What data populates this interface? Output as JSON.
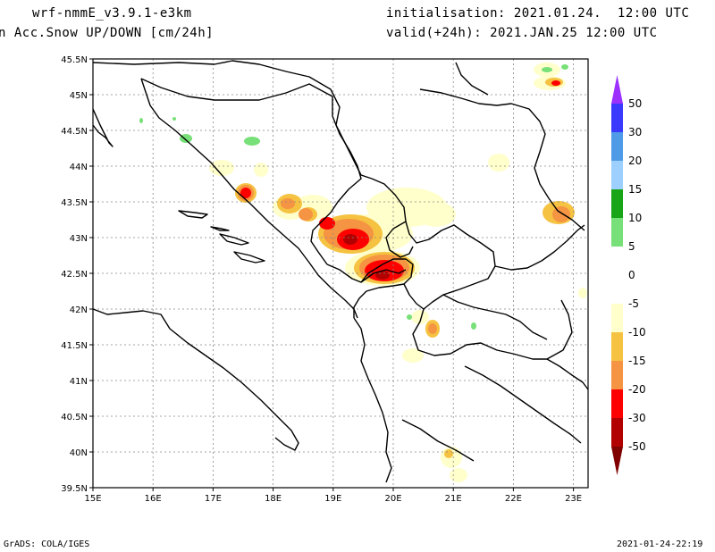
{
  "header": {
    "model": "wrf-nmmE_v3.9.1-e3km",
    "field": "n Acc.Snow UP/DOWN [cm/24h]",
    "init": "initialisation: 2021.01.24.  12:00 UTC",
    "valid": "valid(+24h): 2021.JAN.25 12:00 UTC"
  },
  "footer": {
    "credit": "GrADS: COLA/IGES",
    "timestamp": "2021-01-24-22:19"
  },
  "axes": {
    "lat_labels": [
      "45.5N",
      "45N",
      "44.5N",
      "44N",
      "43.5N",
      "43N",
      "42.5N",
      "42N",
      "41.5N",
      "41N",
      "40.5N",
      "40N",
      "39.5N"
    ],
    "lon_labels": [
      "15E",
      "16E",
      "17E",
      "18E",
      "19E",
      "20E",
      "21E",
      "22E",
      "23E"
    ]
  },
  "colorbar": {
    "labels": [
      "50",
      "30",
      "20",
      "15",
      "10",
      "5",
      "0",
      "-5",
      "-10",
      "-15",
      "-20",
      "-30",
      "-50"
    ],
    "colors": [
      "#9b30ff",
      "#3a3aff",
      "#4f9be8",
      "#9ed0ff",
      "#18a518",
      "#78e078",
      "#ffffff",
      "#ffffff",
      "#ffffcc",
      "#f5c242",
      "#f59442",
      "#ff0000",
      "#b20000",
      "#800000"
    ]
  }
}
